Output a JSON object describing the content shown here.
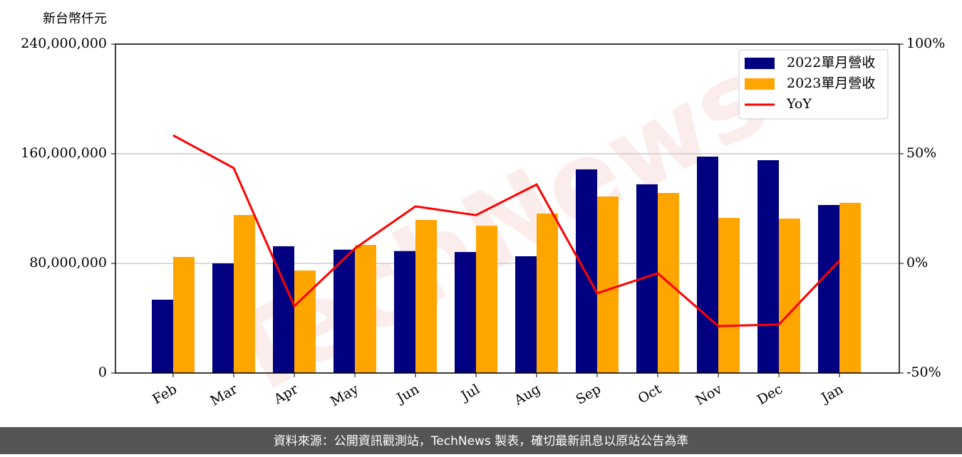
{
  "chart_data": {
    "type": "bar-line",
    "y_label": "新台幣仟元",
    "watermark": "TechNews",
    "categories": [
      "Feb",
      "Mar",
      "Apr",
      "May",
      "Jun",
      "Jul",
      "Aug",
      "Sep",
      "Oct",
      "Nov",
      "Dec",
      "Jan"
    ],
    "series": [
      {
        "name": "2022單月營收",
        "color": "#000080",
        "type": "bar",
        "values": [
          53500000,
          80000000,
          92500000,
          90000000,
          89000000,
          88300000,
          85200000,
          148600000,
          137700000,
          157900000,
          155300000,
          122600000
        ]
      },
      {
        "name": "2023單月營收",
        "color": "#ffa500",
        "type": "bar",
        "values": [
          84700000,
          115300000,
          74800000,
          93500000,
          111700000,
          107500000,
          116400000,
          128800000,
          131400000,
          113200000,
          112700000,
          124200000
        ]
      },
      {
        "name": "YoY",
        "color": "#ff0000",
        "type": "line",
        "axis": "y2",
        "values": [
          58.4,
          43.5,
          -19.5,
          6.8,
          26,
          22,
          36,
          -13.6,
          -4.5,
          -28.6,
          -27.9,
          1.3
        ]
      }
    ],
    "ylim": [
      0,
      240000000
    ],
    "yticks": [
      0,
      {
        "value": 80000000,
        "label": "80,000,000"
      },
      {
        "value": 160000000,
        "label": "160,000,000"
      },
      {
        "value": 240000000,
        "label": "240,000,000"
      }
    ],
    "y2lim": [
      -50,
      100
    ],
    "y2ticks": [
      {
        "value": -50,
        "label": "-50%"
      },
      {
        "value": 0,
        "label": "0%"
      },
      {
        "value": 50,
        "label": "50%"
      },
      {
        "value": 100,
        "label": "100%"
      }
    ],
    "grid": true,
    "legend": "upper right",
    "footer": "資料來源：公開資訊觀測站，TechNews 製表，確切最新訊息以原站公告為準"
  }
}
